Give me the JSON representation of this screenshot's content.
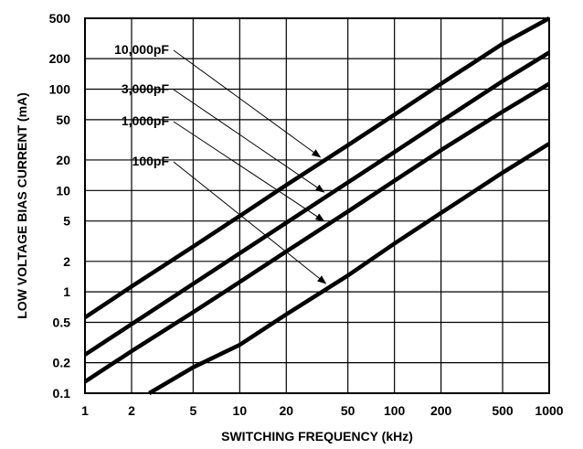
{
  "chart_data": {
    "type": "line",
    "xlabel": "SWITCHING FREQUENCY (kHz)",
    "ylabel": "LOW VOLTAGE BIAS CURRENT (mA)",
    "x_scale": "log",
    "y_scale": "log",
    "xlim": [
      1,
      1000
    ],
    "ylim": [
      0.1,
      500
    ],
    "grid": true,
    "x_ticks": [
      1,
      2,
      5,
      10,
      20,
      50,
      100,
      200,
      500,
      1000
    ],
    "x_tick_labels": [
      "1",
      "2",
      "5",
      "10",
      "20",
      "50",
      "100",
      "200",
      "500",
      "1000"
    ],
    "y_ticks": [
      0.1,
      0.2,
      0.5,
      1,
      2,
      5,
      10,
      20,
      50,
      100,
      200,
      500
    ],
    "y_tick_labels": [
      "0.1",
      "0.2",
      "0.5",
      "1",
      "2",
      "5",
      "10",
      "20",
      "50",
      "100",
      "200",
      "500"
    ],
    "series": [
      {
        "name": "10,000pF",
        "x": [
          1,
          2,
          5,
          10,
          20,
          50,
          100,
          200,
          500,
          1000
        ],
        "y": [
          0.56,
          1.13,
          2.8,
          5.6,
          11.3,
          28,
          56,
          113,
          280,
          500
        ]
      },
      {
        "name": "3,000pF",
        "x": [
          1,
          2,
          5,
          10,
          20,
          50,
          100,
          200,
          500,
          1000
        ],
        "y": [
          0.24,
          0.48,
          1.2,
          2.4,
          4.8,
          12,
          24,
          48,
          120,
          230
        ]
      },
      {
        "name": "1,000pF",
        "x": [
          1,
          2,
          5,
          10,
          20,
          50,
          100,
          200,
          500,
          1000
        ],
        "y": [
          0.13,
          0.26,
          0.63,
          1.25,
          2.5,
          6.2,
          12.5,
          25,
          60,
          113
        ]
      },
      {
        "name": "100pF",
        "x": [
          2.6,
          5,
          10,
          20,
          50,
          100,
          200,
          500,
          1000
        ],
        "y": [
          0.1,
          0.18,
          0.3,
          0.6,
          1.45,
          3,
          6,
          15,
          29
        ]
      }
    ],
    "annotations": [
      {
        "text": "10,000pF",
        "series": "10,000pF"
      },
      {
        "text": "3,000pF",
        "series": "3,000pF"
      },
      {
        "text": "1,000pF",
        "series": "1,000pF"
      },
      {
        "text": "100pF",
        "series": "100pF"
      }
    ]
  }
}
